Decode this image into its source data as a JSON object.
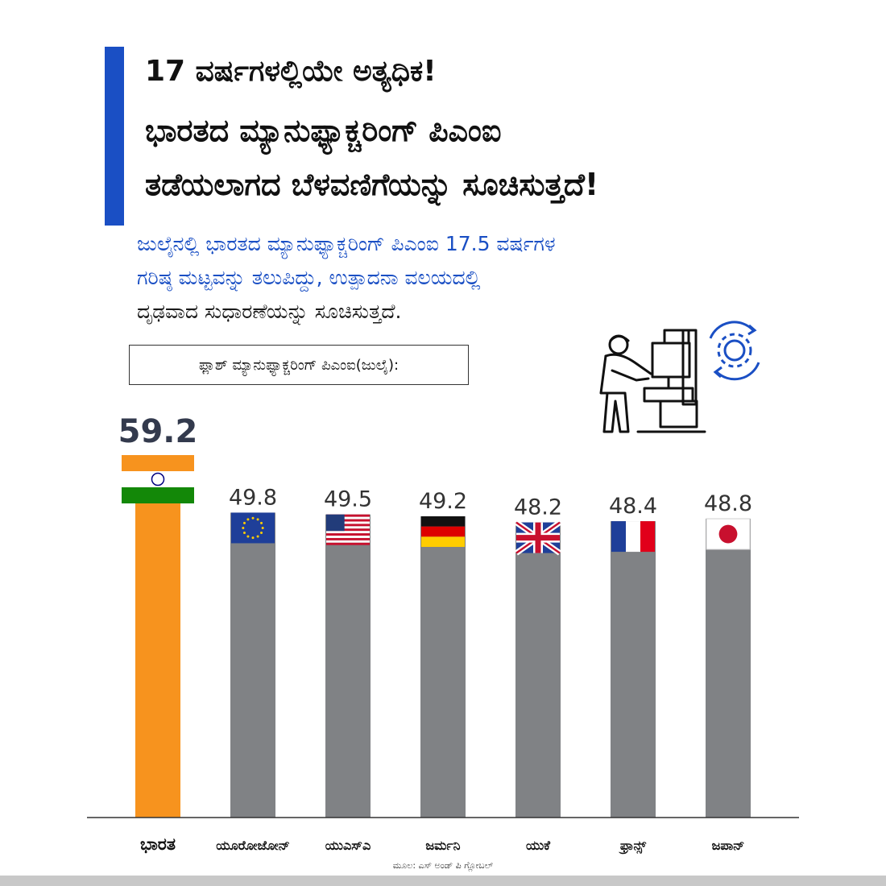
{
  "header": {
    "title_line1": "17 ವರ್ಷಗಳಲ್ಲಿಯೇ ಅತ್ಯಧಿಕ!",
    "title_line2": "ಭಾರತದ  ಮ್ಯಾನುಫ್ಯಾಕ್ಚರಿಂಗ್ ಪಿಎಂಐ",
    "title_line3": "ತಡೆಯಲಾಗದ ಬೆಳವಣಿಗೆಯನ್ನು ಸೂಚಿಸುತ್ತದೆ!",
    "subtitle_line1": "ಜುಲೈನಲ್ಲಿ ಭಾರತದ ಮ್ಯಾನುಫ್ಯಾಕ್ಚರಿಂಗ್ ಪಿಎಂಐ 17.5 ವರ್ಷಗಳ",
    "subtitle_line2": "ಗರಿಷ್ಠ ಮಟ್ಟವನ್ನು ತಲುಪಿದ್ದು, ಉತ್ಪಾದನಾ ವಲಯದಲ್ಲಿ",
    "subtitle_line3": "ದೃಢವಾದ ಸುಧಾರಣೆಯನ್ನು ಸೂಚಿಸುತ್ತದೆ.",
    "flash_label": "ಫ್ಲಾಶ್ ಮ್ಯಾನುಫ್ಯಾಕ್ಚರಿಂಗ್ ಪಿಎಂಐ(ಜುಲೈ):"
  },
  "icons": {
    "illustration": "worker-machine-icon",
    "gear": "gear-cycle-icon"
  },
  "source_text": "ಮೂಲ: ಎಸ್ ಅಂಡ್ ಪಿ ಗ್ಲೋಬಲ್",
  "colors": {
    "accent": "#1a4fc4",
    "highlight_bar": "#f7931e",
    "other_bars": "#808285"
  },
  "chart_data": {
    "type": "bar",
    "categories": [
      "ಭಾರತ",
      "ಯೂರೋಜೋನ್",
      "ಯುಎಸ್ಎ",
      "ಜರ್ಮನಿ",
      "ಯುಕೆ",
      "ಫ್ರಾನ್ಸ್",
      "ಜಪಾನ್"
    ],
    "values": [
      59.2,
      49.8,
      49.5,
      49.2,
      48.2,
      48.4,
      48.8
    ],
    "value_labels": [
      "59.2",
      "49.8",
      "49.5",
      "49.2",
      "48.2",
      "48.4",
      "48.8"
    ],
    "flags": [
      "india-flag",
      "eu-flag",
      "usa-flag",
      "germany-flag",
      "uk-flag",
      "france-flag",
      "japan-flag"
    ],
    "highlight_index": 0,
    "title": "",
    "xlabel": "",
    "ylabel": "",
    "grid": false,
    "ylim": [
      0,
      59.2
    ]
  }
}
